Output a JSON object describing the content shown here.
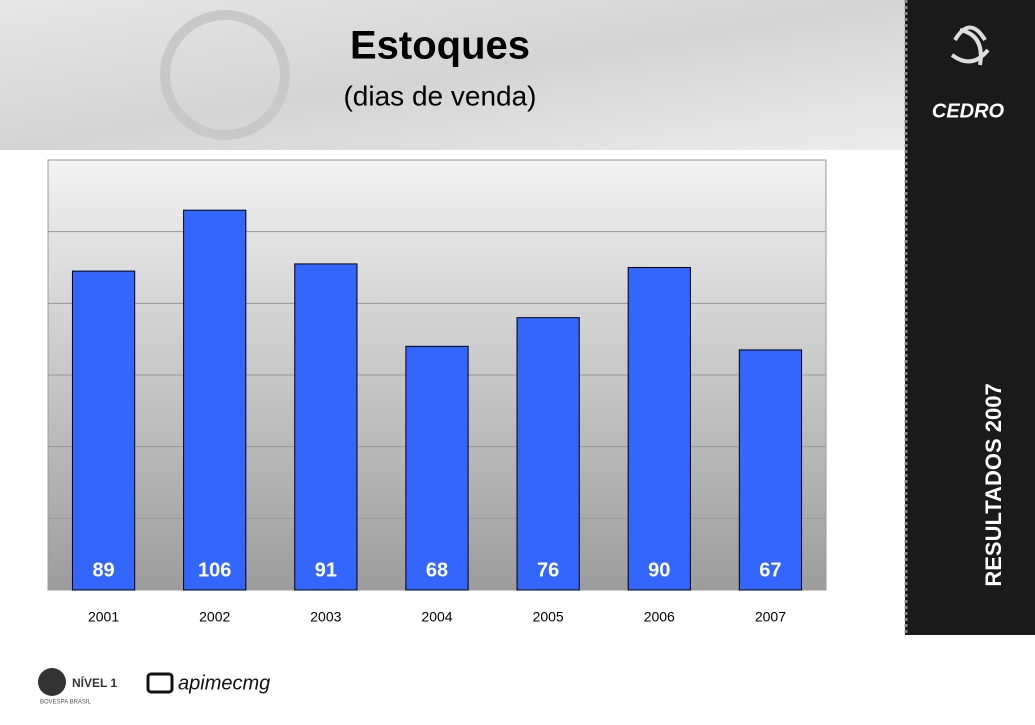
{
  "chart_data": {
    "type": "bar",
    "title": "Estoques",
    "subtitle": "(dias de venda)",
    "categories": [
      "2001",
      "2002",
      "2003",
      "2004",
      "2005",
      "2006",
      "2007"
    ],
    "values": [
      89,
      106,
      91,
      68,
      76,
      90,
      67
    ],
    "color": "#3366ff",
    "ylim": [
      0,
      120
    ],
    "yticks": [
      0,
      20,
      40,
      60,
      80,
      100,
      120
    ],
    "grid": true
  },
  "sidebar": {
    "logo": "CEDRO",
    "label": "RESULTADOS 2007"
  },
  "footer": {
    "level": "NÍVEL 1",
    "exchange": "BOVESPA BRASIL",
    "partner": "apimecmg"
  }
}
